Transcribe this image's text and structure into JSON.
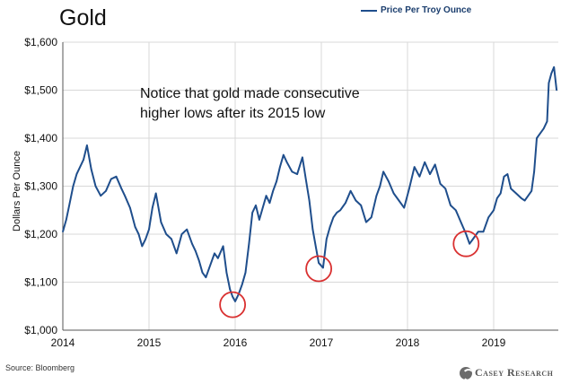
{
  "chart_data": {
    "type": "line",
    "title": "Gold",
    "ylabel": "Dollars Per Ounce",
    "xlabel": "",
    "legend": {
      "placement": "top-right",
      "entries": [
        "Price Per Troy Ounce"
      ]
    },
    "ylim": [
      1000,
      1600
    ],
    "xlim": [
      2014.0,
      2019.75
    ],
    "yticks": [
      "$1,000",
      "$1,100",
      "$1,200",
      "$1,300",
      "$1,400",
      "$1,500",
      "$1,600"
    ],
    "ytick_values": [
      1000,
      1100,
      1200,
      1300,
      1400,
      1500,
      1600
    ],
    "xticks": [
      "2014",
      "2015",
      "2016",
      "2017",
      "2018",
      "2019"
    ],
    "xtick_values": [
      2014,
      2015,
      2016,
      2017,
      2018,
      2019
    ],
    "grid": true,
    "annotation": "Notice that gold made consecutive\nhigher lows after its 2015 low",
    "series": [
      {
        "name": "Price Per Troy Ounce",
        "color": "#1f4e8c",
        "x": [
          2014.0,
          2014.04,
          2014.08,
          2014.12,
          2014.16,
          2014.2,
          2014.24,
          2014.28,
          2014.33,
          2014.38,
          2014.44,
          2014.5,
          2014.56,
          2014.62,
          2014.68,
          2014.72,
          2014.78,
          2014.84,
          2014.88,
          2014.92,
          2014.96,
          2015.0,
          2015.04,
          2015.08,
          2015.14,
          2015.2,
          2015.26,
          2015.32,
          2015.38,
          2015.44,
          2015.5,
          2015.54,
          2015.58,
          2015.62,
          2015.66,
          2015.7,
          2015.76,
          2015.8,
          2015.86,
          2015.9,
          2015.94,
          2015.97,
          2016.0,
          2016.04,
          2016.08,
          2016.12,
          2016.16,
          2016.2,
          2016.24,
          2016.28,
          2016.32,
          2016.36,
          2016.4,
          2016.44,
          2016.48,
          2016.52,
          2016.56,
          2016.6,
          2016.66,
          2016.72,
          2016.78,
          2016.82,
          2016.86,
          2016.9,
          2016.94,
          2016.97,
          2017.02,
          2017.06,
          2017.1,
          2017.14,
          2017.18,
          2017.22,
          2017.28,
          2017.34,
          2017.4,
          2017.46,
          2017.52,
          2017.58,
          2017.64,
          2017.68,
          2017.72,
          2017.78,
          2017.84,
          2017.9,
          2017.96,
          2018.02,
          2018.08,
          2018.14,
          2018.2,
          2018.26,
          2018.32,
          2018.38,
          2018.44,
          2018.5,
          2018.56,
          2018.62,
          2018.68,
          2018.72,
          2018.76,
          2018.82,
          2018.88,
          2018.94,
          2019.0,
          2019.04,
          2019.08,
          2019.12,
          2019.16,
          2019.2,
          2019.26,
          2019.32,
          2019.36,
          2019.4,
          2019.44,
          2019.47,
          2019.5,
          2019.54,
          2019.58,
          2019.62,
          2019.64,
          2019.67,
          2019.7,
          2019.73
        ],
        "y": [
          1205,
          1230,
          1265,
          1300,
          1325,
          1340,
          1355,
          1385,
          1335,
          1300,
          1280,
          1290,
          1315,
          1320,
          1295,
          1280,
          1255,
          1215,
          1200,
          1175,
          1190,
          1210,
          1255,
          1285,
          1225,
          1200,
          1190,
          1160,
          1200,
          1210,
          1180,
          1165,
          1145,
          1120,
          1110,
          1130,
          1160,
          1150,
          1175,
          1120,
          1085,
          1070,
          1060,
          1075,
          1095,
          1120,
          1180,
          1245,
          1260,
          1230,
          1255,
          1280,
          1265,
          1290,
          1310,
          1340,
          1365,
          1350,
          1330,
          1325,
          1360,
          1315,
          1270,
          1210,
          1170,
          1140,
          1130,
          1190,
          1215,
          1235,
          1245,
          1250,
          1265,
          1290,
          1270,
          1260,
          1225,
          1235,
          1280,
          1300,
          1330,
          1310,
          1285,
          1270,
          1255,
          1295,
          1340,
          1320,
          1350,
          1325,
          1345,
          1305,
          1295,
          1260,
          1250,
          1225,
          1200,
          1180,
          1190,
          1205,
          1205,
          1235,
          1250,
          1275,
          1285,
          1320,
          1325,
          1295,
          1285,
          1275,
          1270,
          1280,
          1290,
          1330,
          1400,
          1410,
          1420,
          1435,
          1515,
          1535,
          1548,
          1500
        ]
      }
    ],
    "highlights": [
      {
        "x": 2015.97,
        "y": 1053,
        "note": "2015 low"
      },
      {
        "x": 2016.97,
        "y": 1128,
        "note": "2016 low"
      },
      {
        "x": 2018.68,
        "y": 1180,
        "note": "2018 low"
      }
    ]
  },
  "footer": {
    "source": "Source: Bloomberg",
    "brand": "Casey Research"
  }
}
